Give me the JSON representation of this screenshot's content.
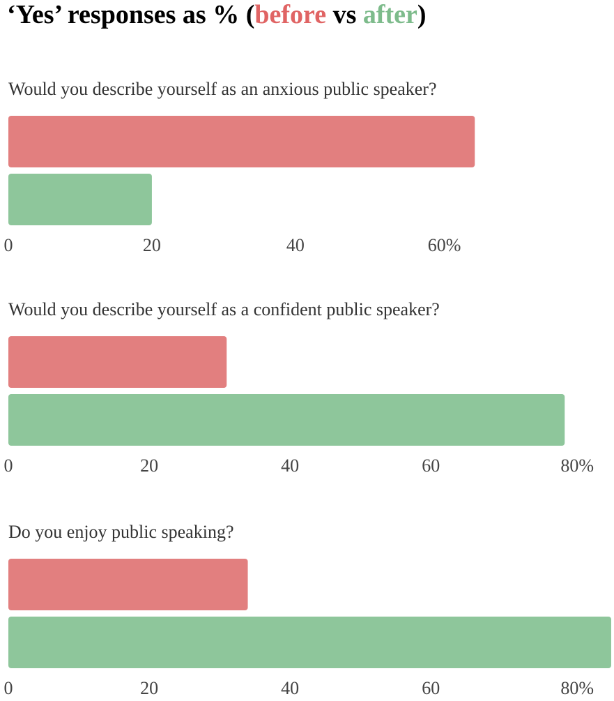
{
  "title": [
    "‘Yes’ responses as % (",
    "vs",
    ")"
  ],
  "chart_data": [
    {
      "type": "bar",
      "orientation": "horizontal",
      "title": "Would you describe yourself as an anxious public speaker?",
      "series": [
        {
          "name": "before",
          "color": "#e27f7f",
          "values": [
            65
          ]
        },
        {
          "name": "after",
          "color": "#8ec69b",
          "values": [
            20
          ]
        }
      ],
      "xlim": [
        0,
        84.4
      ],
      "xticks": [
        0,
        20,
        40,
        {
          "value": 60,
          "label": "60%"
        }
      ]
    },
    {
      "type": "bar",
      "orientation": "horizontal",
      "title": "Would you describe yourself as a confident public speaker?",
      "series": [
        {
          "color": "#e27f7f",
          "values": [
            31
          ]
        },
        {
          "color": "#8ec69b",
          "values": [
            79
          ]
        }
      ],
      "xlim": [
        0,
        86
      ],
      "xticks": [
        0,
        20,
        40,
        60,
        {
          "value": 80,
          "label": "80%"
        }
      ]
    },
    {
      "type": "bar",
      "orientation": "horizontal",
      "title": "Do you enjoy public speaking?",
      "series": [
        {
          "color": "#e27f7f",
          "values": [
            34
          ]
        },
        {
          "color": "#8ec69b",
          "values": [
            85.6
          ]
        }
      ],
      "xlim": [
        0,
        86
      ],
      "xticks": [
        0,
        20,
        40,
        60,
        {
          "value": 80,
          "label": "80%"
        }
      ]
    }
  ]
}
